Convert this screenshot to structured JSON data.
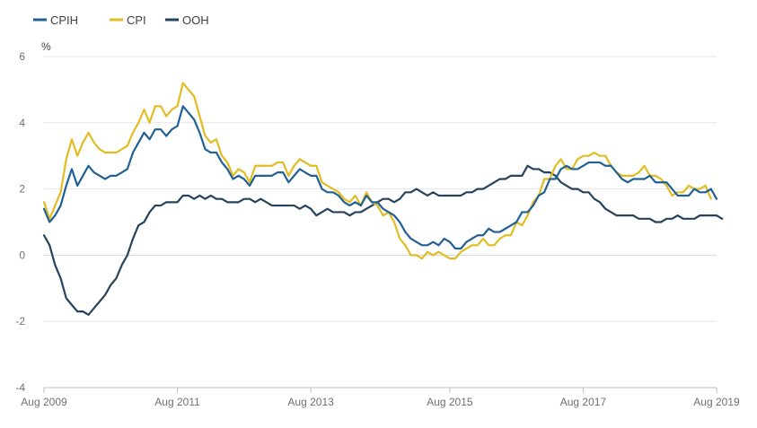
{
  "chart_data": {
    "type": "line",
    "title": "",
    "xlabel": "",
    "ylabel": "%",
    "ylim": [
      -4,
      6
    ],
    "yticks": [
      -4,
      -2,
      0,
      2,
      4,
      6
    ],
    "grid": "horizontal",
    "legend_position": "top-left",
    "x_start": "Aug 2009",
    "x_end": "Aug 2019",
    "x_tick_labels": [
      "Aug 2009",
      "Aug 2011",
      "Aug 2013",
      "Aug 2015",
      "Aug 2017",
      "Aug 2019"
    ],
    "series": [
      {
        "name": "CPIH",
        "color": "#206095",
        "values": [
          1.4,
          1.0,
          1.2,
          1.5,
          2.1,
          2.6,
          2.1,
          2.4,
          2.7,
          2.5,
          2.4,
          2.3,
          2.4,
          2.4,
          2.5,
          2.6,
          3.1,
          3.4,
          3.7,
          3.5,
          3.8,
          3.8,
          3.6,
          3.8,
          3.9,
          4.5,
          4.3,
          4.1,
          3.7,
          3.2,
          3.1,
          3.1,
          2.8,
          2.6,
          2.3,
          2.4,
          2.3,
          2.1,
          2.4,
          2.4,
          2.4,
          2.4,
          2.5,
          2.5,
          2.2,
          2.4,
          2.6,
          2.5,
          2.4,
          2.4,
          2.0,
          1.9,
          1.9,
          1.8,
          1.6,
          1.5,
          1.6,
          1.5,
          1.8,
          1.6,
          1.6,
          1.4,
          1.3,
          1.2,
          1.0,
          0.7,
          0.5,
          0.4,
          0.3,
          0.3,
          0.4,
          0.3,
          0.5,
          0.4,
          0.2,
          0.2,
          0.4,
          0.5,
          0.6,
          0.6,
          0.8,
          0.7,
          0.7,
          0.8,
          0.9,
          1.0,
          1.3,
          1.3,
          1.5,
          1.8,
          1.9,
          2.3,
          2.3,
          2.6,
          2.7,
          2.6,
          2.6,
          2.7,
          2.8,
          2.8,
          2.8,
          2.7,
          2.7,
          2.5,
          2.3,
          2.2,
          2.3,
          2.3,
          2.3,
          2.4,
          2.2,
          2.2,
          2.2,
          2.0,
          1.8,
          1.8,
          1.8,
          2.0,
          1.9,
          1.9,
          2.0,
          1.7
        ]
      },
      {
        "name": "CPI",
        "color": "#e2bc22",
        "values": [
          1.6,
          1.1,
          1.5,
          1.9,
          2.9,
          3.5,
          3.0,
          3.4,
          3.7,
          3.4,
          3.2,
          3.1,
          3.1,
          3.1,
          3.2,
          3.3,
          3.7,
          4.0,
          4.4,
          4.0,
          4.5,
          4.5,
          4.2,
          4.4,
          4.5,
          5.2,
          5.0,
          4.8,
          4.2,
          3.6,
          3.4,
          3.5,
          3.0,
          2.8,
          2.4,
          2.6,
          2.5,
          2.2,
          2.7,
          2.7,
          2.7,
          2.7,
          2.8,
          2.8,
          2.4,
          2.7,
          2.9,
          2.8,
          2.7,
          2.7,
          2.2,
          2.1,
          2.0,
          1.9,
          1.7,
          1.6,
          1.8,
          1.5,
          1.9,
          1.6,
          1.5,
          1.2,
          1.3,
          1.0,
          0.5,
          0.3,
          0.0,
          0.0,
          -0.1,
          0.1,
          0.0,
          0.1,
          0.0,
          -0.1,
          -0.1,
          0.1,
          0.2,
          0.3,
          0.3,
          0.5,
          0.3,
          0.3,
          0.5,
          0.6,
          0.6,
          1.0,
          0.9,
          1.2,
          1.6,
          1.8,
          2.3,
          2.3,
          2.7,
          2.9,
          2.6,
          2.6,
          2.9,
          3.0,
          3.0,
          3.1,
          3.0,
          3.0,
          2.7,
          2.5,
          2.4,
          2.4,
          2.4,
          2.5,
          2.7,
          2.4,
          2.4,
          2.3,
          2.1,
          1.8,
          1.9,
          1.9,
          2.1,
          2.0,
          2.0,
          2.1,
          1.7
        ]
      },
      {
        "name": "OOH",
        "color": "#27435c",
        "values": [
          0.6,
          0.3,
          -0.3,
          -0.7,
          -1.3,
          -1.5,
          -1.7,
          -1.7,
          -1.8,
          -1.6,
          -1.4,
          -1.2,
          -0.9,
          -0.7,
          -0.3,
          0.0,
          0.5,
          0.9,
          1.0,
          1.3,
          1.5,
          1.5,
          1.6,
          1.6,
          1.6,
          1.8,
          1.8,
          1.7,
          1.8,
          1.7,
          1.8,
          1.7,
          1.7,
          1.6,
          1.6,
          1.6,
          1.7,
          1.7,
          1.6,
          1.7,
          1.6,
          1.5,
          1.5,
          1.5,
          1.5,
          1.5,
          1.4,
          1.5,
          1.4,
          1.2,
          1.3,
          1.4,
          1.3,
          1.3,
          1.3,
          1.2,
          1.3,
          1.3,
          1.4,
          1.5,
          1.6,
          1.7,
          1.7,
          1.6,
          1.7,
          1.9,
          1.9,
          2.0,
          1.9,
          1.8,
          1.9,
          1.8,
          1.8,
          1.8,
          1.8,
          1.8,
          1.9,
          1.9,
          2.0,
          2.0,
          2.1,
          2.2,
          2.3,
          2.3,
          2.4,
          2.4,
          2.4,
          2.7,
          2.6,
          2.6,
          2.5,
          2.5,
          2.4,
          2.2,
          2.1,
          2.0,
          2.0,
          1.9,
          1.9,
          1.7,
          1.6,
          1.4,
          1.3,
          1.2,
          1.2,
          1.2,
          1.2,
          1.1,
          1.1,
          1.1,
          1.0,
          1.0,
          1.1,
          1.1,
          1.2,
          1.1,
          1.1,
          1.1,
          1.2,
          1.2,
          1.2,
          1.2,
          1.1
        ]
      }
    ]
  }
}
